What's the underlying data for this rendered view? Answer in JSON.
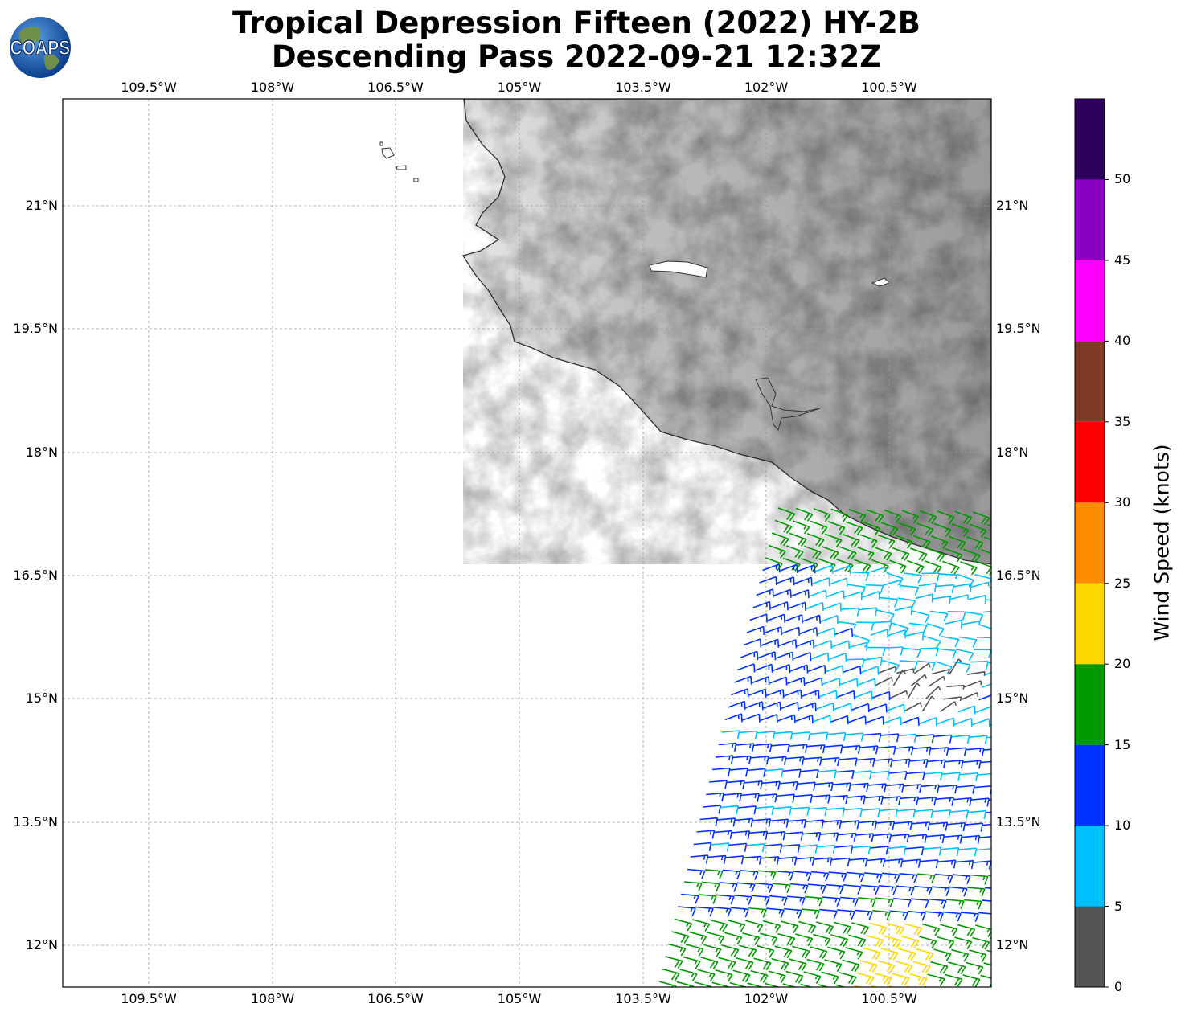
{
  "title": {
    "line1": "Tropical Depression Fifteen (2022) HY-2B",
    "line2": "Descending Pass 2022-09-21 12:32Z"
  },
  "logo": {
    "text": "COAPS",
    "icon": "globe-logo-icon"
  },
  "map": {
    "lon_ticks": [
      "109.5°W",
      "108°W",
      "106.5°W",
      "105°W",
      "103.5°W",
      "102°W",
      "100.5°W"
    ],
    "lat_ticks": [
      "21°N",
      "19.5°N",
      "18°N",
      "16.5°N",
      "15°N",
      "13.5°N",
      "12°N"
    ],
    "lon_range": [
      -110.5,
      -99.2
    ],
    "lat_range": [
      11.5,
      22.3
    ],
    "gridlines": true,
    "land_shading": "grayscale terrain"
  },
  "colorbar": {
    "title": "Wind Speed (knots)",
    "ticks": [
      "0",
      "5",
      "10",
      "15",
      "20",
      "25",
      "30",
      "35",
      "40",
      "45",
      "50"
    ],
    "bins": [
      {
        "from": 0,
        "to": 5,
        "color": "#555555"
      },
      {
        "from": 5,
        "to": 10,
        "color": "#00bfff"
      },
      {
        "from": 10,
        "to": 15,
        "color": "#0033ff"
      },
      {
        "from": 15,
        "to": 20,
        "color": "#009900"
      },
      {
        "from": 20,
        "to": 25,
        "color": "#ffd700"
      },
      {
        "from": 25,
        "to": 30,
        "color": "#ff8c00"
      },
      {
        "from": 30,
        "to": 35,
        "color": "#ff0000"
      },
      {
        "from": 35,
        "to": 40,
        "color": "#7f3a26"
      },
      {
        "from": 40,
        "to": 45,
        "color": "#ff00ff"
      },
      {
        "from": 45,
        "to": 50,
        "color": "#8a00c2"
      },
      {
        "from": 50,
        "to": 55,
        "color": "#2e005e"
      }
    ]
  }
}
